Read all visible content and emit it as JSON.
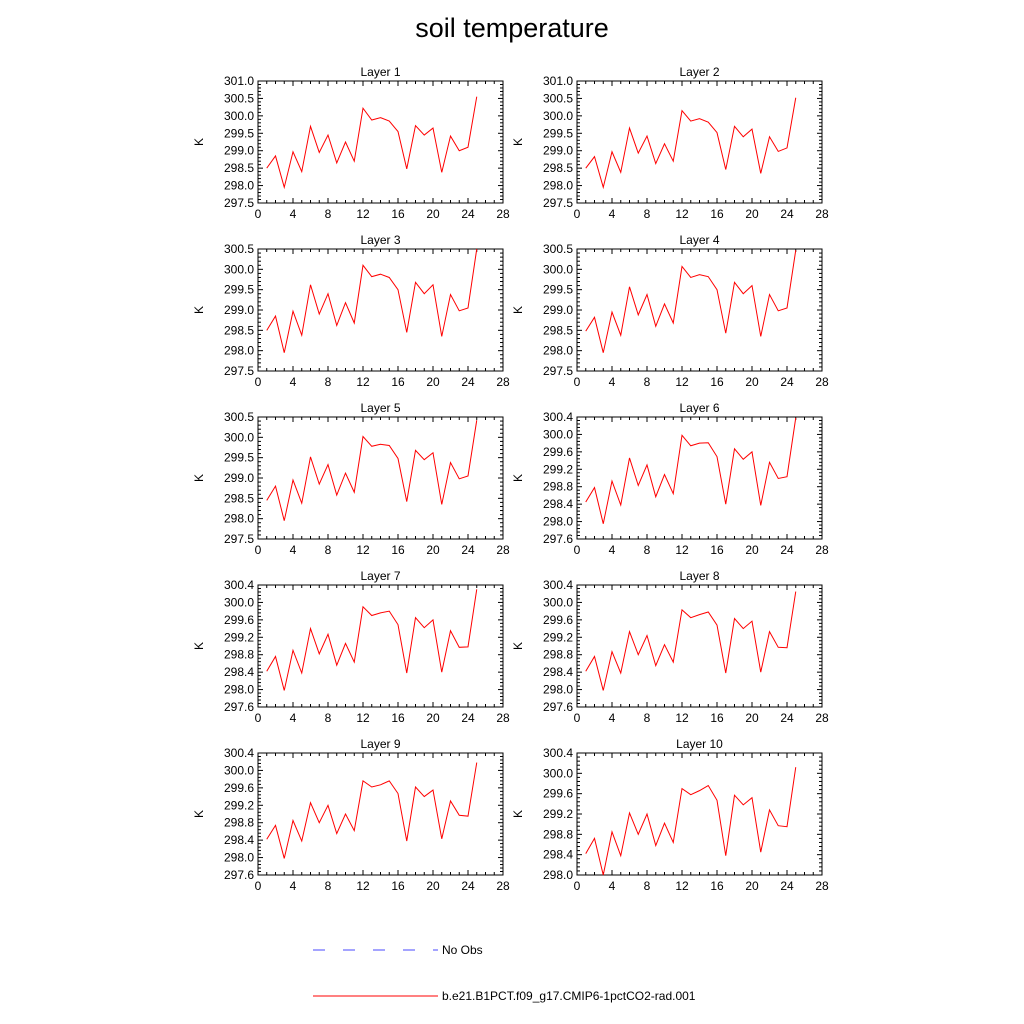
{
  "title": "soil temperature",
  "legend": [
    {
      "label": "No Obs",
      "color": "#4a4aff",
      "dash": true
    },
    {
      "label": "b.e21.B1PCT.f09_g17.CMIP6-1pctCO2-rad.001",
      "color": "#ff0000",
      "dash": false
    }
  ],
  "chart_data": [
    {
      "type": "line",
      "title": "Layer 1",
      "ylabel": "K",
      "xlim": [
        0,
        28
      ],
      "ylim": [
        297.5,
        301.0
      ],
      "xticks": [
        0,
        4,
        8,
        12,
        16,
        20,
        24,
        28
      ],
      "yticks": [
        "297.5",
        "298.0",
        "298.5",
        "299.0",
        "299.5",
        "300.0",
        "300.5",
        "301.0"
      ],
      "series": [
        {
          "color": "#ff0000",
          "x": [
            1,
            2,
            3,
            4,
            5,
            6,
            7,
            8,
            9,
            10,
            11,
            12,
            13,
            14,
            15,
            16,
            17,
            18,
            19,
            20,
            21,
            22,
            23,
            24,
            25
          ],
          "values": [
            298.5,
            298.85,
            297.95,
            298.97,
            298.4,
            299.7,
            298.95,
            299.45,
            298.65,
            299.25,
            298.7,
            300.22,
            299.88,
            299.95,
            299.85,
            299.55,
            298.48,
            299.72,
            299.45,
            299.65,
            298.38,
            299.42,
            299.0,
            299.1,
            300.55
          ]
        }
      ]
    },
    {
      "type": "line",
      "title": "Layer 2",
      "ylabel": "K",
      "xlim": [
        0,
        28
      ],
      "ylim": [
        297.5,
        301.0
      ],
      "xticks": [
        0,
        4,
        8,
        12,
        16,
        20,
        24,
        28
      ],
      "yticks": [
        "297.5",
        "298.0",
        "298.5",
        "299.0",
        "299.5",
        "300.0",
        "300.5",
        "301.0"
      ],
      "series": [
        {
          "color": "#ff0000",
          "x": [
            1,
            2,
            3,
            4,
            5,
            6,
            7,
            8,
            9,
            10,
            11,
            12,
            13,
            14,
            15,
            16,
            17,
            18,
            19,
            20,
            21,
            22,
            23,
            24,
            25
          ],
          "values": [
            298.5,
            298.83,
            297.95,
            298.97,
            298.38,
            299.65,
            298.93,
            299.42,
            298.63,
            299.2,
            298.7,
            300.15,
            299.85,
            299.92,
            299.82,
            299.52,
            298.46,
            299.7,
            299.4,
            299.62,
            298.35,
            299.4,
            298.98,
            299.08,
            300.52
          ]
        }
      ]
    },
    {
      "type": "line",
      "title": "Layer 3",
      "ylabel": "K",
      "xlim": [
        0,
        28
      ],
      "ylim": [
        297.5,
        300.5
      ],
      "xticks": [
        0,
        4,
        8,
        12,
        16,
        20,
        24,
        28
      ],
      "yticks": [
        "297.5",
        "298.0",
        "298.5",
        "299.0",
        "299.5",
        "300.0",
        "300.5"
      ],
      "series": [
        {
          "color": "#ff0000",
          "x": [
            1,
            2,
            3,
            4,
            5,
            6,
            7,
            8,
            9,
            10,
            11,
            12,
            13,
            14,
            15,
            16,
            17,
            18,
            19,
            20,
            21,
            22,
            23,
            24,
            25
          ],
          "values": [
            298.5,
            298.85,
            297.95,
            298.97,
            298.38,
            299.62,
            298.9,
            299.4,
            298.62,
            299.18,
            298.68,
            300.1,
            299.82,
            299.88,
            299.8,
            299.5,
            298.45,
            299.68,
            299.4,
            299.62,
            298.35,
            299.38,
            298.98,
            299.05,
            300.5
          ]
        }
      ]
    },
    {
      "type": "line",
      "title": "Layer 4",
      "ylabel": "K",
      "xlim": [
        0,
        28
      ],
      "ylim": [
        297.5,
        300.5
      ],
      "xticks": [
        0,
        4,
        8,
        12,
        16,
        20,
        24,
        28
      ],
      "yticks": [
        "297.5",
        "298.0",
        "298.5",
        "299.0",
        "299.5",
        "300.0",
        "300.5"
      ],
      "series": [
        {
          "color": "#ff0000",
          "x": [
            1,
            2,
            3,
            4,
            5,
            6,
            7,
            8,
            9,
            10,
            11,
            12,
            13,
            14,
            15,
            16,
            17,
            18,
            19,
            20,
            21,
            22,
            23,
            24,
            25
          ],
          "values": [
            298.48,
            298.82,
            297.95,
            298.95,
            298.38,
            299.57,
            298.88,
            299.38,
            298.6,
            299.15,
            298.68,
            300.07,
            299.8,
            299.87,
            299.82,
            299.5,
            298.43,
            299.68,
            299.4,
            299.6,
            298.35,
            299.38,
            298.98,
            299.05,
            300.47
          ]
        }
      ]
    },
    {
      "type": "line",
      "title": "Layer 5",
      "ylabel": "K",
      "xlim": [
        0,
        28
      ],
      "ylim": [
        297.5,
        300.5
      ],
      "xticks": [
        0,
        4,
        8,
        12,
        16,
        20,
        24,
        28
      ],
      "yticks": [
        "297.5",
        "298.0",
        "298.5",
        "299.0",
        "299.5",
        "300.0",
        "300.5"
      ],
      "series": [
        {
          "color": "#ff0000",
          "x": [
            1,
            2,
            3,
            4,
            5,
            6,
            7,
            8,
            9,
            10,
            11,
            12,
            13,
            14,
            15,
            16,
            17,
            18,
            19,
            20,
            21,
            22,
            23,
            24,
            25
          ],
          "values": [
            298.45,
            298.8,
            297.95,
            298.95,
            298.38,
            299.52,
            298.85,
            299.33,
            298.58,
            299.12,
            298.65,
            300.02,
            299.78,
            299.83,
            299.8,
            299.48,
            298.42,
            299.68,
            299.45,
            299.62,
            298.35,
            299.38,
            298.98,
            299.05,
            300.42
          ]
        }
      ]
    },
    {
      "type": "line",
      "title": "Layer 6",
      "ylabel": "K",
      "xlim": [
        0,
        28
      ],
      "ylim": [
        297.6,
        300.4
      ],
      "xticks": [
        0,
        4,
        8,
        12,
        16,
        20,
        24,
        28
      ],
      "yticks": [
        "297.6",
        "298.0",
        "298.4",
        "298.8",
        "299.2",
        "299.6",
        "300.0",
        "300.4"
      ],
      "series": [
        {
          "color": "#ff0000",
          "x": [
            1,
            2,
            3,
            4,
            5,
            6,
            7,
            8,
            9,
            10,
            11,
            12,
            13,
            14,
            15,
            16,
            17,
            18,
            19,
            20,
            21,
            22,
            23,
            24,
            25
          ],
          "values": [
            298.45,
            298.78,
            297.95,
            298.93,
            298.38,
            299.46,
            298.83,
            299.3,
            298.57,
            299.08,
            298.64,
            299.98,
            299.74,
            299.8,
            299.81,
            299.49,
            298.4,
            299.67,
            299.43,
            299.6,
            298.37,
            299.36,
            298.99,
            299.03,
            300.38
          ]
        }
      ]
    },
    {
      "type": "line",
      "title": "Layer 7",
      "ylabel": "K",
      "xlim": [
        0,
        28
      ],
      "ylim": [
        297.6,
        300.4
      ],
      "xticks": [
        0,
        4,
        8,
        12,
        16,
        20,
        24,
        28
      ],
      "yticks": [
        "297.6",
        "298.0",
        "298.4",
        "298.8",
        "299.2",
        "299.6",
        "300.0",
        "300.4"
      ],
      "series": [
        {
          "color": "#ff0000",
          "x": [
            1,
            2,
            3,
            4,
            5,
            6,
            7,
            8,
            9,
            10,
            11,
            12,
            13,
            14,
            15,
            16,
            17,
            18,
            19,
            20,
            21,
            22,
            23,
            24,
            25
          ],
          "values": [
            298.42,
            298.76,
            297.98,
            298.9,
            298.38,
            299.4,
            298.82,
            299.27,
            298.56,
            299.06,
            298.63,
            299.9,
            299.7,
            299.76,
            299.8,
            299.49,
            298.38,
            299.65,
            299.42,
            299.6,
            298.4,
            299.35,
            298.97,
            298.98,
            300.3
          ]
        }
      ]
    },
    {
      "type": "line",
      "title": "Layer 8",
      "ylabel": "K",
      "xlim": [
        0,
        28
      ],
      "ylim": [
        297.6,
        300.4
      ],
      "xticks": [
        0,
        4,
        8,
        12,
        16,
        20,
        24,
        28
      ],
      "yticks": [
        "297.6",
        "298.0",
        "298.4",
        "298.8",
        "299.2",
        "299.6",
        "300.0",
        "300.4"
      ],
      "series": [
        {
          "color": "#ff0000",
          "x": [
            1,
            2,
            3,
            4,
            5,
            6,
            7,
            8,
            9,
            10,
            11,
            12,
            13,
            14,
            15,
            16,
            17,
            18,
            19,
            20,
            21,
            22,
            23,
            24,
            25
          ],
          "values": [
            298.42,
            298.76,
            297.98,
            298.87,
            298.38,
            299.33,
            298.8,
            299.24,
            298.55,
            299.03,
            298.63,
            299.83,
            299.65,
            299.72,
            299.78,
            299.48,
            298.38,
            299.63,
            299.4,
            299.57,
            298.4,
            299.33,
            298.97,
            298.96,
            300.25
          ]
        }
      ]
    },
    {
      "type": "line",
      "title": "Layer 9",
      "ylabel": "K",
      "xlim": [
        0,
        28
      ],
      "ylim": [
        297.6,
        300.4
      ],
      "xticks": [
        0,
        4,
        8,
        12,
        16,
        20,
        24,
        28
      ],
      "yticks": [
        "297.6",
        "298.0",
        "298.4",
        "298.8",
        "299.2",
        "299.6",
        "300.0",
        "300.4"
      ],
      "series": [
        {
          "color": "#ff0000",
          "x": [
            1,
            2,
            3,
            4,
            5,
            6,
            7,
            8,
            9,
            10,
            11,
            12,
            13,
            14,
            15,
            16,
            17,
            18,
            19,
            20,
            21,
            22,
            23,
            24,
            25
          ],
          "values": [
            298.42,
            298.74,
            297.98,
            298.85,
            298.38,
            299.26,
            298.8,
            299.2,
            298.55,
            299.0,
            298.62,
            299.76,
            299.62,
            299.67,
            299.76,
            299.47,
            298.38,
            299.62,
            299.4,
            299.55,
            298.43,
            299.3,
            298.97,
            298.95,
            300.18
          ]
        }
      ]
    },
    {
      "type": "line",
      "title": "Layer 10",
      "ylabel": "K",
      "xlim": [
        0,
        28
      ],
      "ylim": [
        298.0,
        300.4
      ],
      "xticks": [
        0,
        4,
        8,
        12,
        16,
        20,
        24,
        28
      ],
      "yticks": [
        "298.0",
        "298.4",
        "298.8",
        "299.2",
        "299.6",
        "300.0",
        "300.4"
      ],
      "series": [
        {
          "color": "#ff0000",
          "x": [
            1,
            2,
            3,
            4,
            5,
            6,
            7,
            8,
            9,
            10,
            11,
            12,
            13,
            14,
            15,
            16,
            17,
            18,
            19,
            20,
            21,
            22,
            23,
            24,
            25
          ],
          "values": [
            298.42,
            298.72,
            298.0,
            298.85,
            298.38,
            299.22,
            298.8,
            299.2,
            298.58,
            299.02,
            298.64,
            299.7,
            299.58,
            299.66,
            299.76,
            299.47,
            298.38,
            299.57,
            299.38,
            299.52,
            298.45,
            299.28,
            298.97,
            298.95,
            300.12
          ]
        }
      ]
    }
  ]
}
